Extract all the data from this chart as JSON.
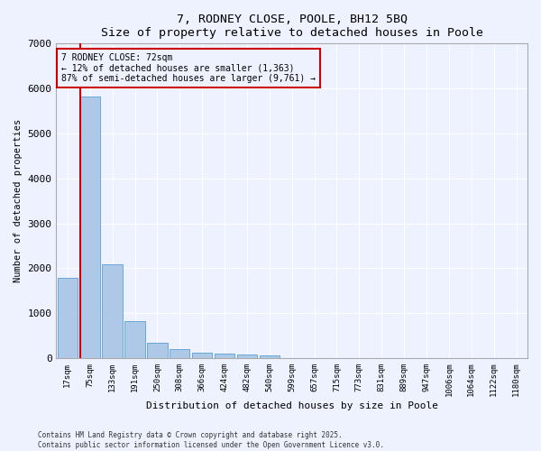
{
  "title": "7, RODNEY CLOSE, POOLE, BH12 5BQ",
  "subtitle": "Size of property relative to detached houses in Poole",
  "xlabel": "Distribution of detached houses by size in Poole",
  "ylabel": "Number of detached properties",
  "categories": [
    "17sqm",
    "75sqm",
    "133sqm",
    "191sqm",
    "250sqm",
    "308sqm",
    "366sqm",
    "424sqm",
    "482sqm",
    "540sqm",
    "599sqm",
    "657sqm",
    "715sqm",
    "773sqm",
    "831sqm",
    "889sqm",
    "947sqm",
    "1006sqm",
    "1064sqm",
    "1122sqm",
    "1180sqm"
  ],
  "values": [
    1780,
    5830,
    2080,
    820,
    350,
    190,
    115,
    95,
    70,
    55,
    0,
    0,
    0,
    0,
    0,
    0,
    0,
    0,
    0,
    0,
    0
  ],
  "bar_color": "#aec9e8",
  "bar_edge_color": "#5a9fd4",
  "annotation_box_text": "7 RODNEY CLOSE: 72sqm\n← 12% of detached houses are smaller (1,363)\n87% of semi-detached houses are larger (9,761) →",
  "annotation_line_color": "#cc0000",
  "annotation_box_edge_color": "#cc0000",
  "vline_x_index": 1,
  "ylim": [
    0,
    7000
  ],
  "yticks": [
    0,
    1000,
    2000,
    3000,
    4000,
    5000,
    6000,
    7000
  ],
  "bg_color": "#eef2ff",
  "grid_color": "#ffffff",
  "footer_line1": "Contains HM Land Registry data © Crown copyright and database right 2025.",
  "footer_line2": "Contains public sector information licensed under the Open Government Licence v3.0."
}
